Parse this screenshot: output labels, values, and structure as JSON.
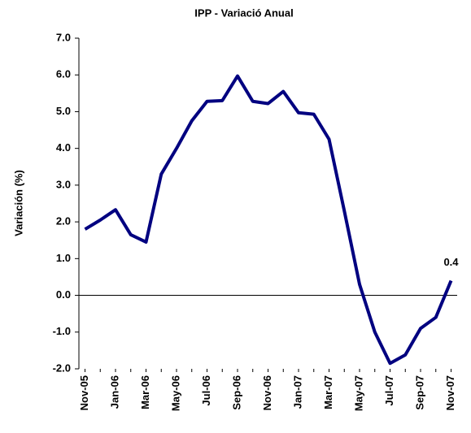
{
  "chart_data": {
    "type": "line",
    "title": "IPP - Variació Anual",
    "y_label": "Variación (%)",
    "categories": [
      "Nov-05",
      null,
      "Jan-06",
      null,
      "Mar-06",
      null,
      "May-06",
      null,
      "Jul-06",
      null,
      "Sep-06",
      null,
      "Nov-06",
      null,
      "Jan-07",
      null,
      "Mar-07",
      null,
      "May-07",
      null,
      "Jul-07",
      null,
      "Sep-07",
      null,
      "Nov-07"
    ],
    "series": [
      {
        "name": "IPP",
        "color": "#000080",
        "values": [
          1.8,
          2.05,
          2.33,
          1.65,
          1.45,
          3.3,
          4.0,
          4.75,
          5.28,
          5.3,
          5.97,
          5.28,
          5.22,
          5.55,
          4.97,
          4.93,
          4.25,
          2.3,
          0.3,
          -1.0,
          -1.85,
          -1.62,
          -0.9,
          -0.6,
          0.4
        ]
      }
    ],
    "data_labels": "last",
    "ylim": [
      -2,
      7
    ],
    "yticks": [
      {
        "value": -2,
        "label": "-2.0"
      },
      {
        "value": -1,
        "label": "-1.0"
      },
      {
        "value": 0,
        "label": "0.0"
      },
      {
        "value": 1,
        "label": "1.0"
      },
      {
        "value": 2,
        "label": "2.0"
      },
      {
        "value": 3,
        "label": "3.0"
      },
      {
        "value": 4,
        "label": "4.0"
      },
      {
        "value": 5,
        "label": "5.0"
      },
      {
        "value": 6,
        "label": "6.0"
      },
      {
        "value": 7,
        "label": "7.0"
      }
    ],
    "grid": false
  }
}
